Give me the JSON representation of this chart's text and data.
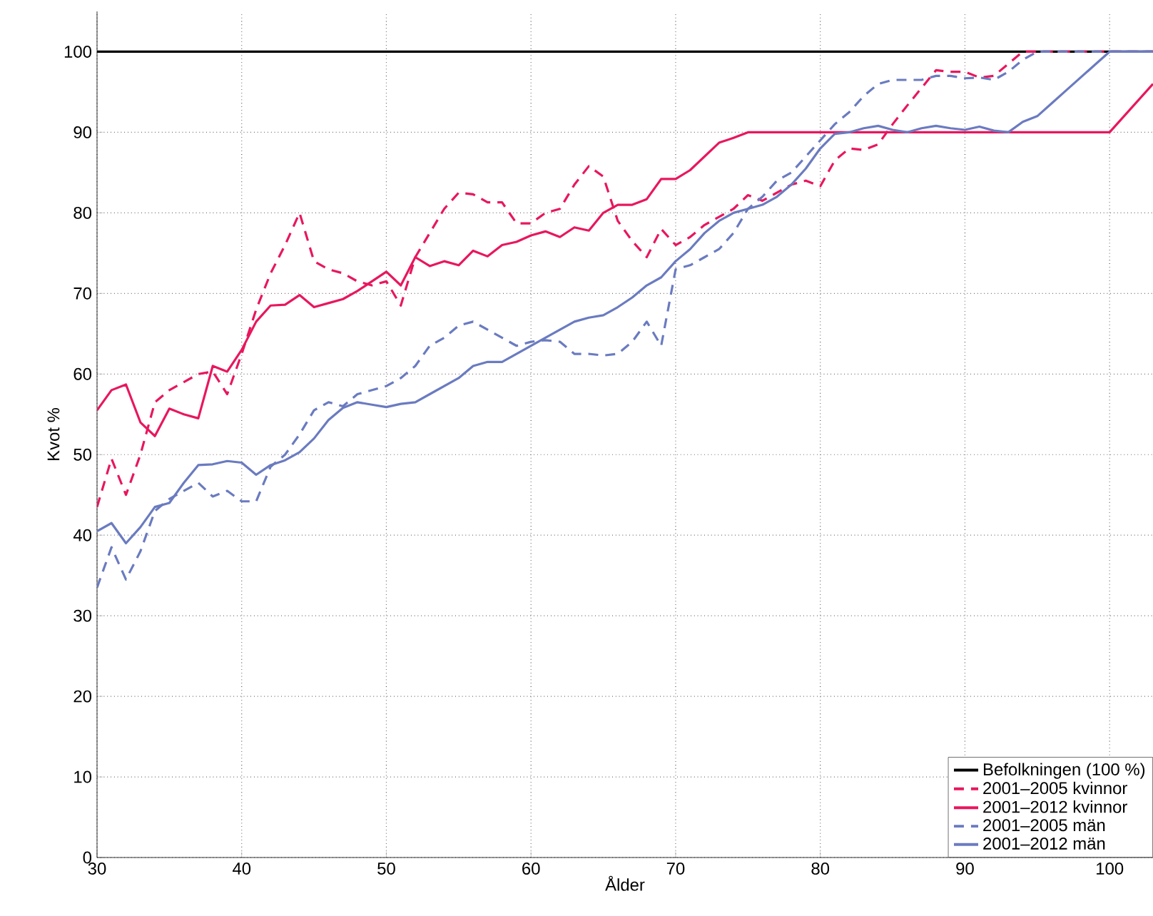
{
  "chart_data": {
    "type": "line",
    "xlabel": "Ålder",
    "ylabel": "Kvot %",
    "xlim": [
      30,
      103
    ],
    "ylim": [
      0,
      105
    ],
    "xticks": [
      30,
      40,
      50,
      60,
      70,
      80,
      90,
      100
    ],
    "yticks": [
      0,
      10,
      20,
      30,
      40,
      50,
      60,
      70,
      80,
      90,
      100
    ],
    "grid": true,
    "legend": "bottom right",
    "marker": "none",
    "series": [
      {
        "name": "Befolkningen (100 %)",
        "color": "#000000",
        "line_style": "solid",
        "x": [
          30,
          103
        ],
        "values": [
          100,
          100
        ]
      },
      {
        "name": "2001–2005 kvinnor",
        "color": "#e8175d",
        "line_style": "dashed",
        "x": [
          30,
          31,
          32,
          33,
          34,
          35,
          36,
          37,
          38,
          39,
          40,
          41,
          42,
          43,
          44,
          45,
          46,
          47,
          48,
          49,
          50,
          51,
          52,
          53,
          54,
          55,
          56,
          57,
          58,
          59,
          60,
          61,
          62,
          63,
          64,
          65,
          66,
          67,
          68,
          69,
          70,
          71,
          72,
          73,
          74,
          75,
          76,
          77,
          78,
          79,
          80,
          81,
          82,
          83,
          84,
          85,
          86,
          87,
          88,
          89,
          90,
          91,
          92,
          93,
          94,
          95,
          103
        ],
        "values": [
          43.5,
          49.5,
          45,
          50,
          56.5,
          58,
          59,
          60,
          60.3,
          57.5,
          62.5,
          68,
          72.5,
          76,
          80,
          74,
          73,
          72.5,
          71.5,
          71,
          71.5,
          68.5,
          74.5,
          77.5,
          80.5,
          82.5,
          82.3,
          81.3,
          81.3,
          78.7,
          78.7,
          80,
          80.5,
          83.5,
          85.8,
          84.5,
          79,
          76.5,
          74.5,
          78,
          76,
          77,
          78.5,
          79.5,
          80.5,
          82.2,
          81.5,
          82.5,
          83.5,
          84,
          83.3,
          86.5,
          88,
          87.8,
          88.5,
          91,
          93.3,
          95.5,
          97.7,
          97.5,
          97.5,
          96.8,
          97,
          98.5,
          100,
          100,
          100
        ]
      },
      {
        "name": "2001–2012 kvinnor",
        "color": "#e8175d",
        "line_style": "solid",
        "x": [
          30,
          31,
          32,
          33,
          34,
          35,
          36,
          37,
          38,
          39,
          40,
          41,
          42,
          43,
          44,
          45,
          46,
          47,
          48,
          49,
          50,
          51,
          52,
          53,
          54,
          55,
          56,
          57,
          58,
          59,
          60,
          61,
          62,
          63,
          64,
          65,
          66,
          67,
          68,
          69,
          70,
          71,
          72,
          73,
          74,
          75,
          100,
          103
        ],
        "values": [
          55.5,
          58,
          58.7,
          54,
          52.3,
          55.7,
          55,
          54.5,
          61,
          60.3,
          63,
          66.5,
          68.5,
          68.6,
          69.8,
          68.3,
          68.8,
          69.3,
          70.3,
          71.5,
          72.7,
          71,
          74.5,
          73.4,
          74,
          73.5,
          75.3,
          74.6,
          76,
          76.4,
          77.2,
          77.7,
          77,
          78.2,
          77.8,
          80,
          81,
          81,
          81.7,
          84.2,
          84.2,
          85.3,
          87,
          88.7,
          89.3,
          90,
          90,
          96
        ]
      },
      {
        "name": "2001–2005 män",
        "color": "#6a7bc0",
        "line_style": "dashed",
        "x": [
          30,
          31,
          32,
          33,
          34,
          35,
          36,
          37,
          38,
          39,
          40,
          41,
          42,
          43,
          44,
          45,
          46,
          47,
          48,
          49,
          50,
          51,
          52,
          53,
          54,
          55,
          56,
          57,
          58,
          59,
          60,
          61,
          62,
          63,
          64,
          65,
          66,
          67,
          68,
          69,
          70,
          71,
          72,
          73,
          74,
          75,
          76,
          77,
          78,
          79,
          80,
          81,
          82,
          83,
          84,
          85,
          86,
          87,
          88,
          89,
          90,
          91,
          92,
          93,
          94,
          95,
          103
        ],
        "values": [
          33.5,
          38.5,
          34.5,
          38,
          43,
          44.5,
          45.5,
          46.5,
          44.8,
          45.5,
          44.2,
          44.2,
          48.5,
          50,
          52.5,
          55.5,
          56.5,
          56,
          57.5,
          58,
          58.5,
          59.5,
          61,
          63.5,
          64.5,
          66,
          66.5,
          65.5,
          64.5,
          63.5,
          64,
          64.2,
          64,
          62.5,
          62.5,
          62.3,
          62.5,
          64,
          66.5,
          63.5,
          73,
          73.5,
          74.5,
          75.5,
          77.5,
          80.5,
          82,
          84,
          85,
          87,
          89,
          91,
          92.5,
          94.5,
          96,
          96.5,
          96.5,
          96.5,
          97,
          97,
          96.7,
          96.8,
          96.5,
          97.5,
          99,
          100,
          100
        ]
      },
      {
        "name": "2001–2012 män",
        "color": "#6a7bc0",
        "line_style": "solid",
        "x": [
          30,
          31,
          32,
          33,
          34,
          35,
          36,
          37,
          38,
          39,
          40,
          41,
          42,
          43,
          44,
          45,
          46,
          47,
          48,
          49,
          50,
          51,
          52,
          53,
          54,
          55,
          56,
          57,
          58,
          59,
          60,
          61,
          62,
          63,
          64,
          65,
          66,
          67,
          68,
          69,
          70,
          71,
          72,
          73,
          74,
          75,
          76,
          77,
          78,
          79,
          80,
          81,
          82,
          83,
          84,
          85,
          86,
          87,
          88,
          89,
          90,
          91,
          92,
          93,
          94,
          95,
          96,
          97,
          98,
          99,
          100,
          103
        ],
        "values": [
          40.5,
          41.5,
          39,
          41,
          43.5,
          44,
          46.5,
          48.7,
          48.8,
          49.2,
          49,
          47.5,
          48.7,
          49.3,
          50.3,
          52,
          54.3,
          55.8,
          56.5,
          56.2,
          55.9,
          56.3,
          56.5,
          57.5,
          58.5,
          59.5,
          61,
          61.5,
          61.5,
          62.5,
          63.5,
          64.5,
          65.5,
          66.5,
          67,
          67.3,
          68.3,
          69.5,
          71,
          72,
          74,
          75.5,
          77.5,
          79,
          80,
          80.5,
          81,
          82,
          83.5,
          85.5,
          88,
          89.8,
          90,
          90.5,
          90.8,
          90.3,
          90,
          90.5,
          90.8,
          90.5,
          90.3,
          90.7,
          90.2,
          90,
          91.3,
          92,
          93.6,
          95.2,
          96.8,
          98.4,
          100,
          100
        ]
      }
    ]
  }
}
